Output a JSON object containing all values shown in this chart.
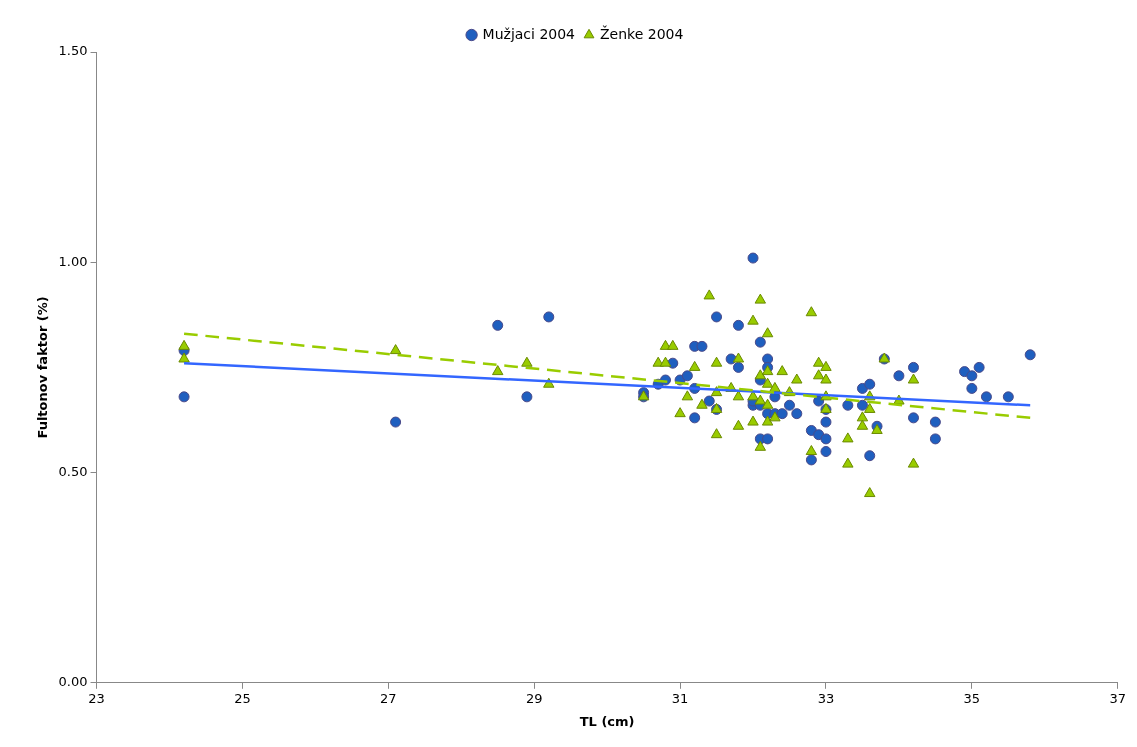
{
  "chart_data": {
    "type": "scatter",
    "xlabel": "TL (cm)",
    "ylabel": "Fultonov faktor (%)",
    "legend": "top",
    "grid": false,
    "xlim": [
      23,
      37
    ],
    "xticks": [
      23,
      25,
      27,
      29,
      31,
      33,
      35,
      37
    ],
    "ylim": [
      0,
      1.5
    ],
    "yticks": [
      {
        "value": 0,
        "label": "0.00"
      },
      {
        "value": 0.5,
        "label": "0.50"
      },
      {
        "value": 1,
        "label": "1.00"
      },
      {
        "value": 1.5,
        "label": "1.50"
      }
    ],
    "series": [
      {
        "name": "Mužjaci 2004",
        "color": "#1f5fbf",
        "marker": "circle",
        "x": [
          24.2,
          24.2,
          27.1,
          28.5,
          28.9,
          29.2,
          30.5,
          30.5,
          30.7,
          30.8,
          30.9,
          31.0,
          31.1,
          31.2,
          31.3,
          31.2,
          31.2,
          31.4,
          31.5,
          31.5,
          31.8,
          31.7,
          31.8,
          32.0,
          32.0,
          32.0,
          32.1,
          32.1,
          32.1,
          32.1,
          32.2,
          32.2,
          32.2,
          32.2,
          32.3,
          32.3,
          32.4,
          32.5,
          32.6,
          32.8,
          32.8,
          32.9,
          32.9,
          33.0,
          33.0,
          33.0,
          33.0,
          33.3,
          33.5,
          33.5,
          33.6,
          33.6,
          33.7,
          33.8,
          34.0,
          34.2,
          34.2,
          34.5,
          34.5,
          34.9,
          35.0,
          35.0,
          35.1,
          35.2,
          35.5,
          35.8
        ],
        "values": [
          0.68,
          0.79,
          0.62,
          0.85,
          0.68,
          0.87,
          0.69,
          0.68,
          0.71,
          0.72,
          0.76,
          0.72,
          0.73,
          0.8,
          0.8,
          0.63,
          0.7,
          0.67,
          0.87,
          0.65,
          0.85,
          0.77,
          0.75,
          1.01,
          0.66,
          0.67,
          0.81,
          0.72,
          0.66,
          0.58,
          0.58,
          0.77,
          0.75,
          0.64,
          0.64,
          0.68,
          0.64,
          0.66,
          0.64,
          0.6,
          0.53,
          0.67,
          0.59,
          0.62,
          0.58,
          0.55,
          0.65,
          0.66,
          0.7,
          0.66,
          0.71,
          0.54,
          0.61,
          0.77,
          0.73,
          0.75,
          0.63,
          0.62,
          0.58,
          0.74,
          0.73,
          0.7,
          0.75,
          0.68,
          0.68,
          0.78
        ]
      },
      {
        "name": "Ženke 2004",
        "color": "#99cc00",
        "marker": "triangle",
        "x": [
          24.2,
          24.2,
          27.1,
          28.5,
          28.9,
          29.2,
          30.5,
          30.7,
          30.8,
          30.8,
          30.9,
          31.0,
          31.1,
          31.2,
          31.3,
          31.4,
          31.5,
          31.5,
          31.5,
          31.5,
          31.7,
          31.8,
          31.8,
          31.8,
          32.0,
          32.0,
          32.0,
          32.1,
          32.1,
          32.1,
          32.1,
          32.2,
          32.2,
          32.2,
          32.2,
          32.2,
          32.3,
          32.3,
          32.4,
          32.5,
          32.6,
          32.8,
          32.8,
          32.9,
          32.9,
          33.0,
          33.0,
          33.0,
          33.0,
          33.3,
          33.3,
          33.5,
          33.5,
          33.6,
          33.6,
          33.6,
          33.7,
          33.8,
          34.0,
          34.2,
          34.2
        ],
        "values": [
          0.8,
          0.77,
          0.79,
          0.74,
          0.76,
          0.71,
          0.68,
          0.76,
          0.8,
          0.76,
          0.8,
          0.64,
          0.68,
          0.75,
          0.66,
          0.92,
          0.76,
          0.69,
          0.65,
          0.59,
          0.7,
          0.77,
          0.68,
          0.61,
          0.86,
          0.68,
          0.62,
          0.91,
          0.73,
          0.67,
          0.56,
          0.83,
          0.74,
          0.71,
          0.66,
          0.62,
          0.7,
          0.63,
          0.74,
          0.69,
          0.72,
          0.88,
          0.55,
          0.76,
          0.73,
          0.75,
          0.72,
          0.68,
          0.65,
          0.58,
          0.52,
          0.63,
          0.61,
          0.68,
          0.65,
          0.45,
          0.6,
          0.77,
          0.67,
          0.72,
          0.52
        ]
      },
      {
        "type": "line",
        "color": "#3366ff",
        "line_style": "solid",
        "marker": "none",
        "x": [
          24.2,
          35.8
        ],
        "values": [
          0.76,
          0.66
        ]
      },
      {
        "type": "line",
        "color": "#99cc00",
        "line_style": "dashed",
        "marker": "none",
        "x": [
          24.2,
          35.8
        ],
        "values": [
          0.83,
          0.63
        ]
      }
    ]
  }
}
